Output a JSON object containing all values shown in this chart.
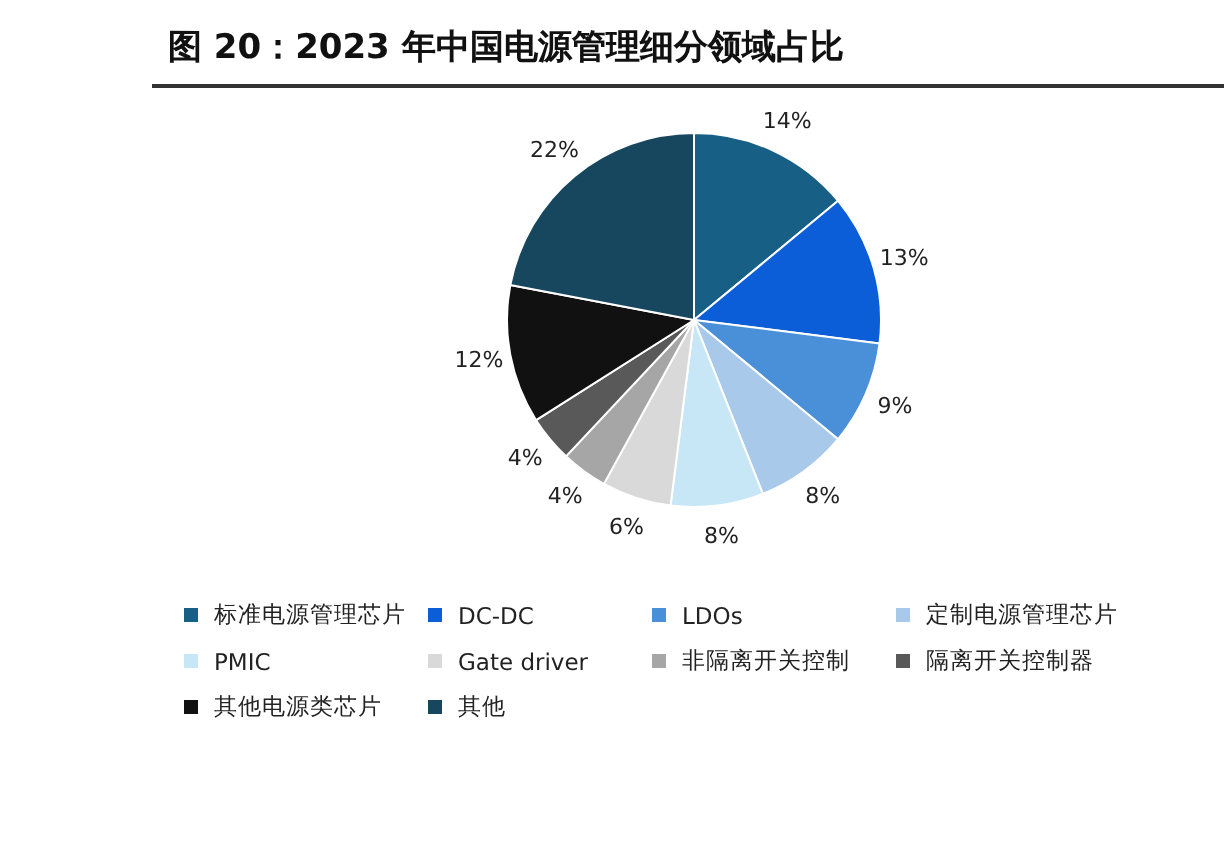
{
  "chart_data": {
    "type": "pie",
    "title": "图 20：2023 年中国电源管理细分领域占比",
    "categories": [
      "标准电源管理芯片",
      "DC-DC",
      "LDOs",
      "定制电源管理芯片",
      "PMIC",
      "Gate driver",
      "非隔离开关控制",
      "隔离开关控制器",
      "其他电源类芯片",
      "其他"
    ],
    "values": [
      14,
      13,
      9,
      8,
      8,
      6,
      4,
      4,
      12,
      22
    ],
    "colors": [
      "#175f85",
      "#0b5ed7",
      "#4a90d9",
      "#a8c9ea",
      "#c7e6f6",
      "#d9d9d9",
      "#a6a6a6",
      "#595959",
      "#111111",
      "#17475e"
    ],
    "value_labels": [
      "14%",
      "13%",
      "9%",
      "8%",
      "8%",
      "6%",
      "4%",
      "4%",
      "12%",
      "22%"
    ],
    "legend": "bottom"
  }
}
